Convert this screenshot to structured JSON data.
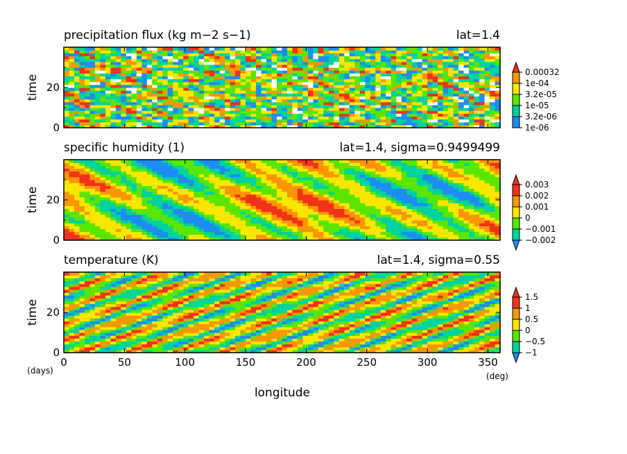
{
  "palette": {
    "white": "#ffffff",
    "blue": "#1e8cf0",
    "cyan": "#00d2a0",
    "green": "#5ae600",
    "yellow": "#fae600",
    "orange": "#fa9600",
    "red": "#f03219"
  },
  "chart_data": [
    {
      "type": "heatmap",
      "title": "precipitation flux (kg m−2 s−1)",
      "annotation": "lat=1.4",
      "ylabel": "time",
      "xlim": [
        0,
        360
      ],
      "ylim": [
        0,
        40
      ],
      "yticks": [
        "0",
        "20"
      ],
      "colorbar": {
        "scale": "log",
        "labels": [
          "1e-06",
          "3.2e-06",
          "1e-05",
          "3.2e-05",
          "1e-04",
          "0.00032"
        ],
        "colors": [
          "white",
          "blue",
          "cyan",
          "green",
          "yellow",
          "orange",
          "red"
        ],
        "extend": "max"
      },
      "pattern": "noisy"
    },
    {
      "type": "heatmap",
      "title": "specific humidity (1)",
      "annotation": "lat=1.4, sigma=0.9499499",
      "ylabel": "time",
      "xlim": [
        0,
        360
      ],
      "ylim": [
        0,
        40
      ],
      "yticks": [
        "0",
        "20"
      ],
      "colorbar": {
        "scale": "linear",
        "labels": [
          "−0.002",
          "−0.001",
          "0",
          "0.001",
          "0.002",
          "0.003"
        ],
        "colors": [
          "blue",
          "cyan",
          "green",
          "yellow",
          "orange",
          "red"
        ],
        "extend": "both"
      },
      "pattern": "westward"
    },
    {
      "type": "heatmap",
      "title": "temperature (K)",
      "annotation": "lat=1.4, sigma=0.55",
      "ylabel": "time",
      "xlim": [
        0,
        360
      ],
      "ylim": [
        0,
        40
      ],
      "yticks": [
        "0",
        "20"
      ],
      "xticks": [
        "0",
        "50",
        "100",
        "150",
        "200",
        "250",
        "300",
        "350"
      ],
      "colorbar": {
        "scale": "linear",
        "labels": [
          "−1",
          "−0.5",
          "0",
          "0.5",
          "1",
          "1.5"
        ],
        "colors": [
          "blue",
          "cyan",
          "green",
          "yellow",
          "orange",
          "red"
        ],
        "extend": "both"
      },
      "pattern": "eastward"
    }
  ],
  "axis": {
    "xlabel": "longitude",
    "xunit": "(deg)",
    "yunit": "(days)"
  }
}
